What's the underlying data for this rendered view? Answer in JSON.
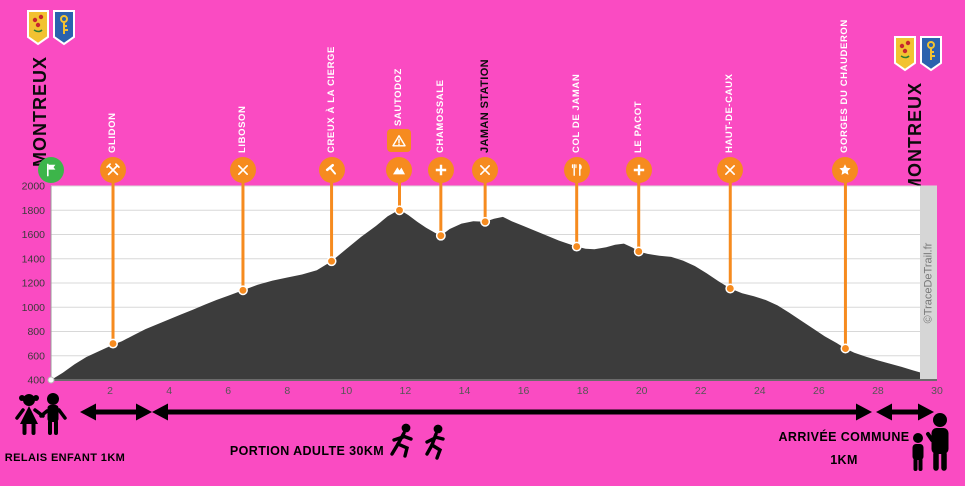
{
  "header": {
    "left_label": "MONTREUX",
    "right_label": "MONTREUX",
    "crest_icon": "montreux-flags-icon"
  },
  "colors": {
    "background": "#fa4bc2",
    "orange": "#f68b1f",
    "green": "#3db54a",
    "profile": "#3c3c3c",
    "grid": "#d8d8d8",
    "plot_bg": "#ffffff",
    "watermark_strip": "#d6d6d6",
    "watermark_text": "#787878",
    "axis_text": "#3a3a3a"
  },
  "chart_data": {
    "type": "area",
    "title": "",
    "xlabel": "",
    "ylabel": "",
    "xlim": [
      0,
      30
    ],
    "ylim": [
      400,
      2000
    ],
    "x_ticks": [
      2,
      4,
      6,
      8,
      10,
      12,
      14,
      16,
      18,
      20,
      22,
      24,
      26,
      28,
      30
    ],
    "y_ticks": [
      400,
      600,
      800,
      1000,
      1200,
      1400,
      1600,
      1800,
      2000
    ],
    "grid": "horizontal",
    "watermark": "©TraceDeTrail.fr",
    "profile": [
      [
        0,
        400
      ],
      [
        0.4,
        460
      ],
      [
        0.8,
        530
      ],
      [
        1.2,
        590
      ],
      [
        1.6,
        635
      ],
      [
        2.1,
        690
      ],
      [
        2.4,
        720
      ],
      [
        2.8,
        770
      ],
      [
        3.2,
        820
      ],
      [
        3.6,
        860
      ],
      [
        4.0,
        900
      ],
      [
        4.4,
        940
      ],
      [
        4.8,
        980
      ],
      [
        5.2,
        1020
      ],
      [
        5.6,
        1060
      ],
      [
        6.0,
        1095
      ],
      [
        6.5,
        1140
      ],
      [
        7.0,
        1185
      ],
      [
        7.5,
        1220
      ],
      [
        8.0,
        1245
      ],
      [
        8.5,
        1270
      ],
      [
        9.0,
        1305
      ],
      [
        9.5,
        1380
      ],
      [
        10.0,
        1480
      ],
      [
        10.5,
        1580
      ],
      [
        11.0,
        1670
      ],
      [
        11.4,
        1750
      ],
      [
        11.8,
        1805
      ],
      [
        12.1,
        1760
      ],
      [
        12.4,
        1705
      ],
      [
        12.7,
        1655
      ],
      [
        13.0,
        1615
      ],
      [
        13.2,
        1590
      ],
      [
        13.5,
        1645
      ],
      [
        13.9,
        1690
      ],
      [
        14.3,
        1710
      ],
      [
        14.7,
        1705
      ],
      [
        15.0,
        1730
      ],
      [
        15.3,
        1745
      ],
      [
        15.6,
        1710
      ],
      [
        16.0,
        1670
      ],
      [
        16.4,
        1630
      ],
      [
        16.8,
        1590
      ],
      [
        17.2,
        1550
      ],
      [
        17.5,
        1525
      ],
      [
        17.8,
        1500
      ],
      [
        18.1,
        1482
      ],
      [
        18.4,
        1478
      ],
      [
        18.8,
        1495
      ],
      [
        19.1,
        1515
      ],
      [
        19.4,
        1525
      ],
      [
        19.7,
        1490
      ],
      [
        19.9,
        1460
      ],
      [
        20.2,
        1440
      ],
      [
        20.6,
        1425
      ],
      [
        21.0,
        1415
      ],
      [
        21.4,
        1385
      ],
      [
        21.8,
        1340
      ],
      [
        22.2,
        1280
      ],
      [
        22.6,
        1215
      ],
      [
        23.0,
        1155
      ],
      [
        23.4,
        1115
      ],
      [
        23.8,
        1090
      ],
      [
        24.2,
        1060
      ],
      [
        24.6,
        1015
      ],
      [
        25.0,
        955
      ],
      [
        25.4,
        890
      ],
      [
        25.8,
        825
      ],
      [
        26.2,
        760
      ],
      [
        26.6,
        705
      ],
      [
        26.9,
        660
      ],
      [
        27.2,
        625
      ],
      [
        27.6,
        592
      ],
      [
        28.0,
        562
      ],
      [
        28.4,
        535
      ],
      [
        28.8,
        508
      ],
      [
        29.2,
        478
      ],
      [
        29.6,
        450
      ],
      [
        30,
        422
      ]
    ],
    "start": {
      "km": 0,
      "icon": "flag"
    },
    "waypoints": [
      {
        "name": "GLIDON",
        "km": 2.1,
        "elev": 700,
        "icon": "crossed-tools",
        "label_style": "light"
      },
      {
        "name": "LIBOSON",
        "km": 6.5,
        "elev": 1140,
        "icon": "crossed-utensils",
        "label_style": "light"
      },
      {
        "name": "CREUX À LA CIERGE",
        "km": 9.5,
        "elev": 1380,
        "icon": "hammer",
        "label_style": "light"
      },
      {
        "name": "SAUTODOZ",
        "km": 11.8,
        "elev": 1800,
        "icon": "mountain",
        "label_style": "light",
        "warning": true
      },
      {
        "name": "CHAMOSSALE",
        "km": 13.2,
        "elev": 1590,
        "icon": "cross",
        "label_style": "light"
      },
      {
        "name": "JAMAN STATION",
        "km": 14.7,
        "elev": 1705,
        "icon": "crossed-utensils",
        "label_style": "dark"
      },
      {
        "name": "COL DE JAMAN",
        "km": 17.8,
        "elev": 1500,
        "icon": "fork-knife",
        "label_style": "light"
      },
      {
        "name": "LE PACOT",
        "km": 19.9,
        "elev": 1460,
        "icon": "cross",
        "label_style": "light"
      },
      {
        "name": "HAUT-DE-CAUX",
        "km": 23.0,
        "elev": 1155,
        "icon": "crossed-utensils",
        "label_style": "light"
      },
      {
        "name": "GORGES DU CHAUDERON",
        "km": 26.9,
        "elev": 660,
        "icon": "star",
        "label_style": "light"
      }
    ]
  },
  "footer": {
    "relais": "RELAIS ENFANT 1KM",
    "portion": "PORTION ADULTE 30KM",
    "arrivee_line1": "ARRIVÉE COMMUNE",
    "arrivee_line2": "1KM"
  }
}
